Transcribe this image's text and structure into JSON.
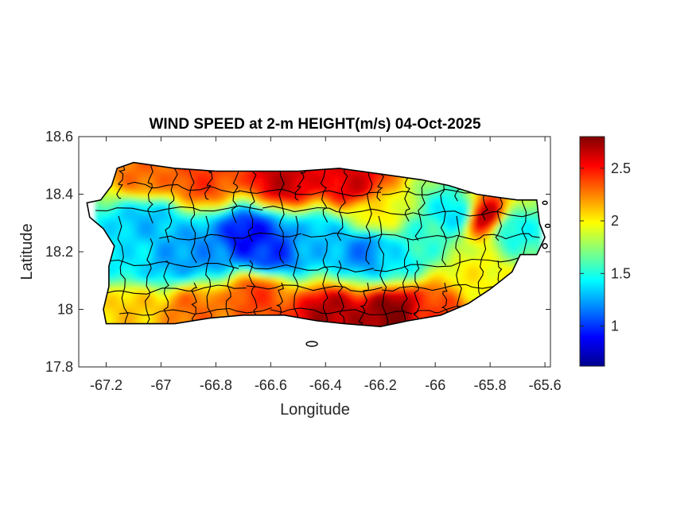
{
  "chart_data": {
    "type": "heatmap",
    "title": "WIND SPEED at 2-m HEIGHT(m/s) 04-Oct-2025",
    "xlabel": "Longitude",
    "ylabel": "Latitude",
    "xlim": [
      -67.3,
      -65.58
    ],
    "ylim": [
      17.8,
      18.6
    ],
    "xticks": [
      -67.2,
      -67,
      -66.8,
      -66.6,
      -66.4,
      -66.2,
      -66,
      -65.8,
      -65.6
    ],
    "yticks": [
      17.8,
      18,
      18.2,
      18.4,
      18.6
    ],
    "colorbar": {
      "min": 0.62,
      "max": 2.8,
      "ticks": [
        1,
        1.5,
        2,
        2.5
      ],
      "colormap": "jet"
    },
    "outline_color": "#000000",
    "island_outline": [
      [
        -67.27,
        18.37
      ],
      [
        -67.22,
        18.38
      ],
      [
        -67.18,
        18.43
      ],
      [
        -67.16,
        18.49
      ],
      [
        -67.1,
        18.51
      ],
      [
        -66.95,
        18.49
      ],
      [
        -66.8,
        18.48
      ],
      [
        -66.65,
        18.48
      ],
      [
        -66.5,
        18.48
      ],
      [
        -66.35,
        18.49
      ],
      [
        -66.2,
        18.47
      ],
      [
        -66.05,
        18.45
      ],
      [
        -65.95,
        18.43
      ],
      [
        -65.85,
        18.4
      ],
      [
        -65.78,
        18.39
      ],
      [
        -65.7,
        18.38
      ],
      [
        -65.63,
        18.38
      ],
      [
        -65.62,
        18.3
      ],
      [
        -65.6,
        18.25
      ],
      [
        -65.63,
        18.19
      ],
      [
        -65.69,
        18.19
      ],
      [
        -65.72,
        18.13
      ],
      [
        -65.8,
        18.07
      ],
      [
        -65.88,
        18.02
      ],
      [
        -65.98,
        17.98
      ],
      [
        -66.1,
        17.96
      ],
      [
        -66.2,
        17.94
      ],
      [
        -66.33,
        17.95
      ],
      [
        -66.43,
        17.96
      ],
      [
        -66.55,
        17.98
      ],
      [
        -66.7,
        17.98
      ],
      [
        -66.82,
        17.97
      ],
      [
        -66.95,
        17.95
      ],
      [
        -67.1,
        17.95
      ],
      [
        -67.2,
        17.95
      ],
      [
        -67.21,
        18.0
      ],
      [
        -67.19,
        18.08
      ],
      [
        -67.19,
        18.15
      ],
      [
        -67.17,
        18.22
      ],
      [
        -67.21,
        18.28
      ],
      [
        -67.26,
        18.32
      ]
    ],
    "wind_speed_centers": [
      {
        "lon": -66.68,
        "lat": 18.25,
        "value": 0.9
      },
      {
        "lon": -66.6,
        "lat": 18.2,
        "value": 1.0
      },
      {
        "lon": -66.85,
        "lat": 18.2,
        "value": 1.2
      },
      {
        "lon": -67.05,
        "lat": 18.3,
        "value": 1.3
      },
      {
        "lon": -66.97,
        "lat": 18.18,
        "value": 1.25
      },
      {
        "lon": -67.1,
        "lat": 18.18,
        "value": 1.4
      },
      {
        "lon": -66.42,
        "lat": 18.24,
        "value": 1.3
      },
      {
        "lon": -66.25,
        "lat": 18.2,
        "value": 1.15
      },
      {
        "lon": -66.15,
        "lat": 18.18,
        "value": 1.4
      },
      {
        "lon": -65.92,
        "lat": 18.33,
        "value": 1.35
      },
      {
        "lon": -66.05,
        "lat": 18.25,
        "value": 1.55
      },
      {
        "lon": -65.72,
        "lat": 18.28,
        "value": 1.45
      },
      {
        "lon": -65.82,
        "lat": 18.32,
        "value": 2.7
      },
      {
        "lon": -66.55,
        "lat": 18.45,
        "value": 2.65
      },
      {
        "lon": -66.3,
        "lat": 18.44,
        "value": 2.6
      },
      {
        "lon": -66.85,
        "lat": 18.45,
        "value": 2.4
      },
      {
        "lon": -67.05,
        "lat": 18.47,
        "value": 2.3
      },
      {
        "lon": -66.15,
        "lat": 17.99,
        "value": 2.8
      },
      {
        "lon": -66.38,
        "lat": 17.98,
        "value": 2.7
      },
      {
        "lon": -66.0,
        "lat": 18.0,
        "value": 2.4
      },
      {
        "lon": -66.65,
        "lat": 18.05,
        "value": 2.4
      },
      {
        "lon": -66.88,
        "lat": 18.0,
        "value": 2.3
      },
      {
        "lon": -67.1,
        "lat": 18.0,
        "value": 2.1
      },
      {
        "lon": -65.85,
        "lat": 18.1,
        "value": 2.0
      },
      {
        "lon": -66.2,
        "lat": 18.33,
        "value": 2.0
      }
    ]
  }
}
